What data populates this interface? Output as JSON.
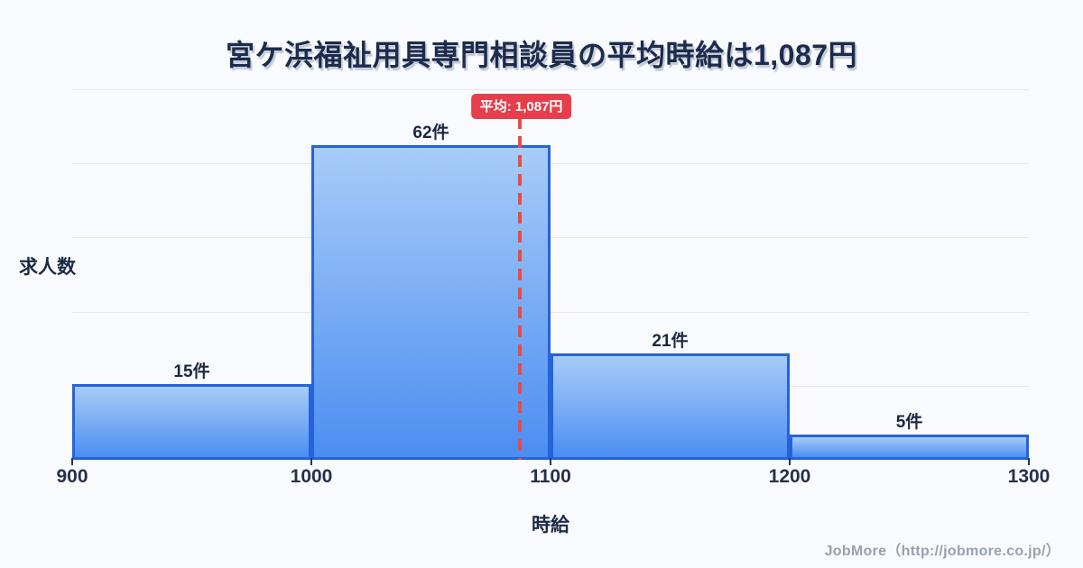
{
  "title": "宮ケ浜福祉用具専門相談員の平均時給は1,087円",
  "chart_data": {
    "type": "bar",
    "subtype": "histogram",
    "bin_edges": [
      900,
      1000,
      1100,
      1200,
      1300
    ],
    "categories": [
      "900-1000",
      "1000-1100",
      "1100-1200",
      "1200-1300"
    ],
    "values": [
      15,
      62,
      21,
      5
    ],
    "bar_labels": [
      "15件",
      "62件",
      "21件",
      "5件"
    ],
    "x_tick_labels": [
      "900",
      "1000",
      "1100",
      "1200",
      "1300"
    ],
    "xlabel": "時給",
    "ylabel": "求人数",
    "xlim": [
      900,
      1300
    ],
    "ylim": [
      0,
      73
    ],
    "grid": true,
    "gridline_divisions": 5,
    "y_tick_labels_shown": false,
    "average_marker": {
      "value": 1087,
      "label": "平均: 1,087円"
    },
    "colors": {
      "background": "#f8fafd",
      "bar_fill_top": "#a7ccf8",
      "bar_fill_bottom": "#4b8ef2",
      "bar_border": "#2563d9",
      "gridline": "#e2e7f0",
      "average_red": "#e63e4b",
      "title_text": "#1d2b4c",
      "axis_text": "#27304b"
    }
  },
  "footer": {
    "credit": "JobMore（http://jobmore.co.jp/）"
  }
}
